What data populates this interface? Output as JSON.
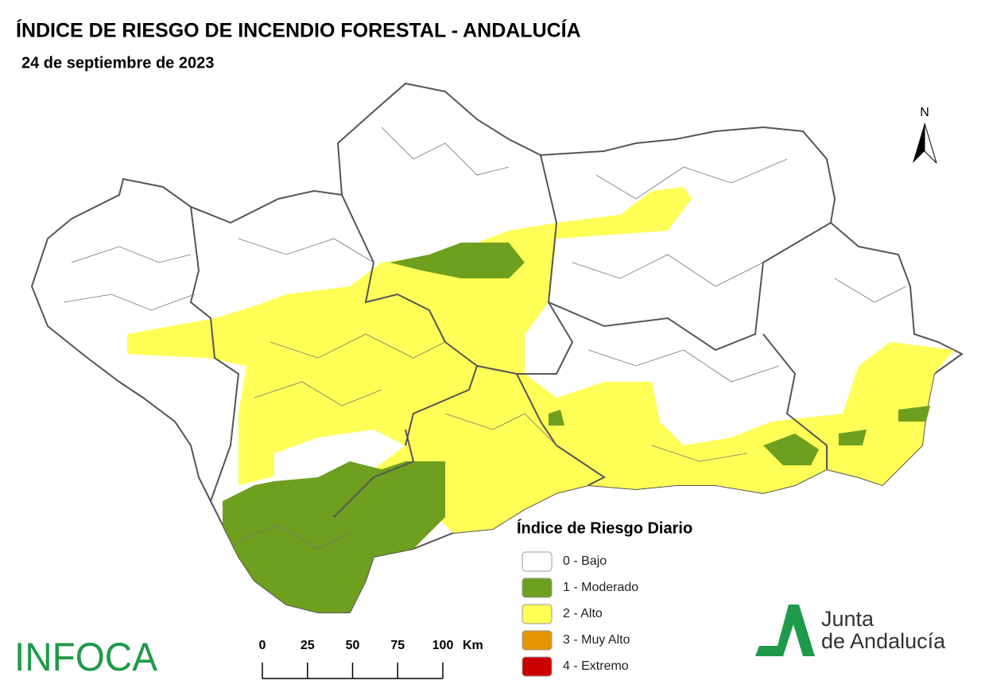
{
  "header": {
    "title": "ÍNDICE DE RIESGO DE INCENDIO FORESTAL - ANDALUCÍA",
    "date": "24 de septiembre de 2023"
  },
  "legend": {
    "title": "Índice de Riesgo Diario",
    "items": [
      {
        "label": "0 - Bajo",
        "color": "#ffffff"
      },
      {
        "label": "1 - Moderado",
        "color": "#6e9f1e"
      },
      {
        "label": "2 - Alto",
        "color": "#ffff57"
      },
      {
        "label": "3 - Muy Alto",
        "color": "#e69500"
      },
      {
        "label": "4 - Extremo",
        "color": "#cc0000"
      }
    ]
  },
  "scale": {
    "ticks": [
      0,
      25,
      50,
      75,
      100
    ],
    "unit": "Km"
  },
  "north": "N",
  "logos": {
    "infoca": "INFOCA",
    "junta": [
      "Junta",
      "de Andalucía"
    ]
  }
}
